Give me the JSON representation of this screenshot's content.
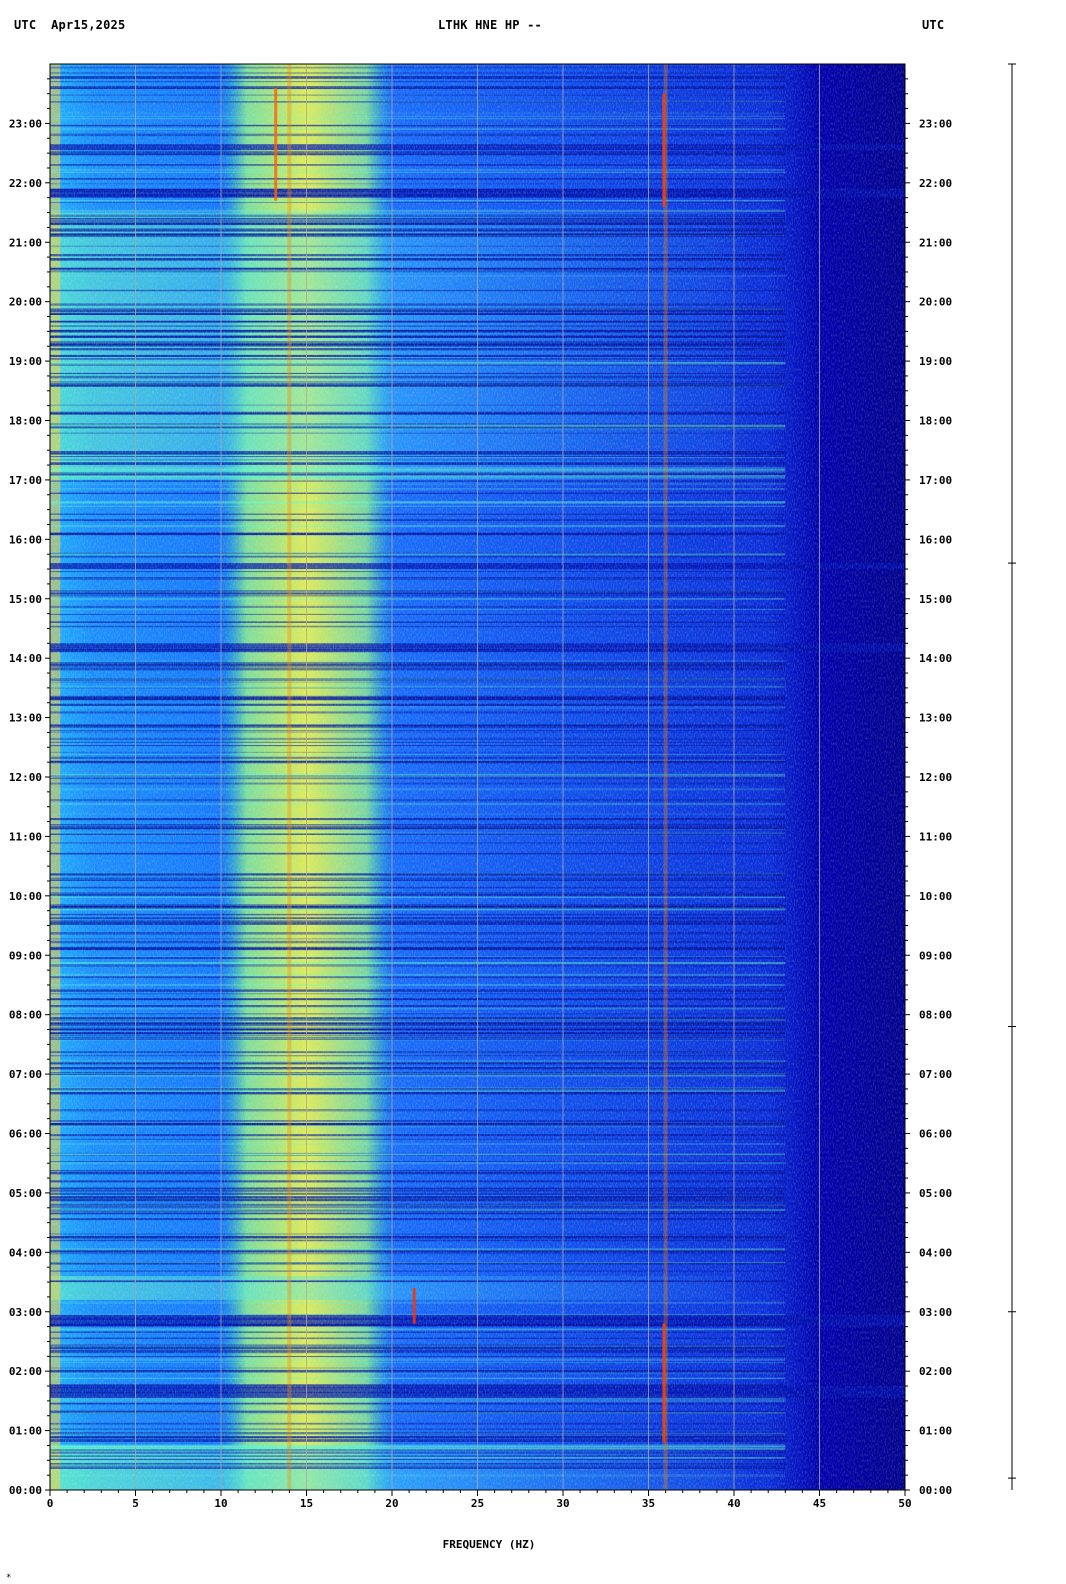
{
  "header": {
    "left": "UTC  Apr15,2025",
    "center": "LTHK HNE HP --",
    "right": "UTC"
  },
  "chart_data": {
    "type": "heatmap",
    "title": "LTHK HNE HP --",
    "date": "Apr15,2025",
    "xlabel": "FREQUENCY (HZ)",
    "ylabel": "UTC",
    "xlim": [
      0,
      50
    ],
    "ylim_hours": [
      0,
      24
    ],
    "x_ticks": [
      "0",
      "5",
      "10",
      "15",
      "20",
      "25",
      "30",
      "35",
      "40",
      "45",
      "50"
    ],
    "y_ticks_left": [
      "00:00",
      "01:00",
      "02:00",
      "03:00",
      "04:00",
      "05:00",
      "06:00",
      "07:00",
      "08:00",
      "09:00",
      "10:00",
      "11:00",
      "12:00",
      "13:00",
      "14:00",
      "15:00",
      "16:00",
      "17:00",
      "18:00",
      "19:00",
      "20:00",
      "21:00",
      "22:00",
      "23:00"
    ],
    "y_ticks_right": [
      "00:00",
      "01:00",
      "02:00",
      "03:00",
      "04:00",
      "05:00",
      "06:00",
      "07:00",
      "08:00",
      "09:00",
      "10:00",
      "11:00",
      "12:00",
      "13:00",
      "14:00",
      "15:00",
      "16:00",
      "17:00",
      "18:00",
      "19:00",
      "20:00",
      "21:00",
      "22:00",
      "23:00"
    ],
    "grid": true,
    "colormap": [
      "#00008b",
      "#0000ff",
      "#0077ff",
      "#00c8ff",
      "#70ffa0",
      "#ffff00",
      "#ff8000",
      "#c00000"
    ],
    "spectral_band_hz": [
      10,
      20
    ],
    "peak_lines_hz": [
      14,
      36
    ],
    "rolloff_hz": [
      41,
      45
    ]
  },
  "footer_mark": "*"
}
